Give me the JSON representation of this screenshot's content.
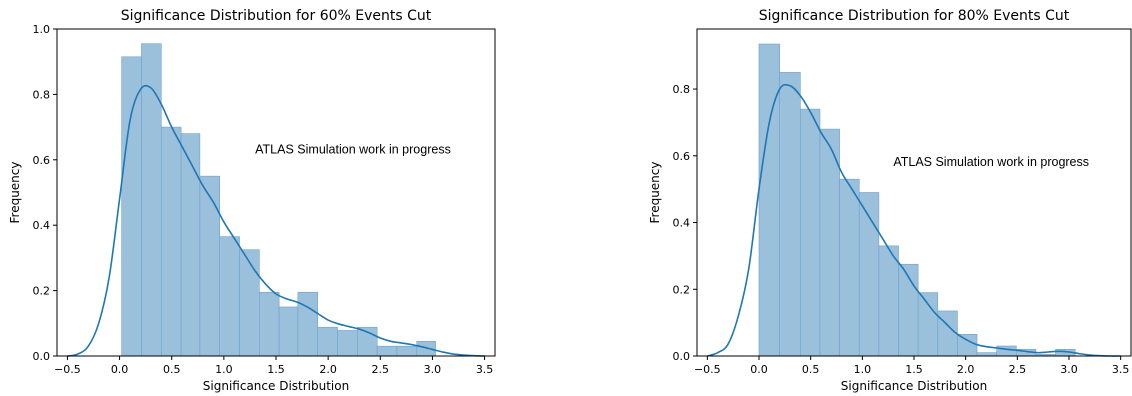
{
  "chart_data": [
    {
      "type": "bar",
      "title": "Significance Distribution for 60% Events Cut",
      "xlabel": "Significance Distribution",
      "ylabel": "Frequency",
      "xlim": [
        -0.6,
        3.6
      ],
      "ylim": [
        0,
        1.0
      ],
      "xticks": [
        -0.5,
        0.0,
        0.5,
        1.0,
        1.5,
        2.0,
        2.5,
        3.0,
        3.5
      ],
      "xtick_labels": [
        "−0.5",
        "0.0",
        "0.5",
        "1.0",
        "1.5",
        "2.0",
        "2.5",
        "3.0",
        "3.5"
      ],
      "yticks": [
        0.0,
        0.2,
        0.4,
        0.6,
        0.8,
        1.0
      ],
      "ytick_labels": [
        "0.0",
        "0.2",
        "0.4",
        "0.6",
        "0.8",
        "1.0"
      ],
      "annotation": "ATLAS Simulation work in progress",
      "annotation_pos_data": [
        1.3,
        0.62
      ],
      "histogram": {
        "bin_edges": [
          0.02,
          0.21,
          0.4,
          0.59,
          0.77,
          0.96,
          1.15,
          1.34,
          1.53,
          1.71,
          1.9,
          2.09,
          2.28,
          2.47,
          2.66,
          2.85,
          3.03
        ],
        "heights": [
          0.915,
          0.955,
          0.7,
          0.68,
          0.55,
          0.365,
          0.325,
          0.195,
          0.15,
          0.195,
          0.088,
          0.078,
          0.088,
          0.03,
          0.03,
          0.045
        ]
      },
      "kde": {
        "x": [
          -0.5,
          -0.4,
          -0.3,
          -0.2,
          -0.1,
          0.0,
          0.1,
          0.2,
          0.3,
          0.4,
          0.5,
          0.6,
          0.7,
          0.8,
          0.9,
          1.0,
          1.1,
          1.2,
          1.3,
          1.4,
          1.5,
          1.6,
          1.7,
          1.8,
          1.9,
          2.0,
          2.1,
          2.2,
          2.3,
          2.4,
          2.5,
          2.6,
          2.7,
          2.8,
          2.9,
          3.0,
          3.1,
          3.2,
          3.3,
          3.4,
          3.5
        ],
        "y": [
          0.0,
          0.006,
          0.03,
          0.1,
          0.24,
          0.48,
          0.72,
          0.815,
          0.82,
          0.77,
          0.7,
          0.64,
          0.58,
          0.52,
          0.47,
          0.41,
          0.36,
          0.31,
          0.26,
          0.22,
          0.19,
          0.175,
          0.165,
          0.15,
          0.13,
          0.11,
          0.098,
          0.09,
          0.082,
          0.07,
          0.055,
          0.045,
          0.04,
          0.035,
          0.028,
          0.02,
          0.012,
          0.006,
          0.003,
          0.001,
          0.0
        ]
      }
    },
    {
      "type": "bar",
      "title": "Significance Distribution for 80% Events Cut",
      "xlabel": "Significance Distribution",
      "ylabel": "Frequency",
      "xlim": [
        -0.6,
        3.6
      ],
      "ylim": [
        0,
        0.98
      ],
      "xticks": [
        -0.5,
        0.0,
        0.5,
        1.0,
        1.5,
        2.0,
        2.5,
        3.0,
        3.5
      ],
      "xtick_labels": [
        "−0.5",
        "0.0",
        "0.5",
        "1.0",
        "1.5",
        "2.0",
        "2.5",
        "3.0",
        "3.5"
      ],
      "yticks": [
        0.0,
        0.2,
        0.4,
        0.6,
        0.8
      ],
      "ytick_labels": [
        "0.0",
        "0.2",
        "0.4",
        "0.6",
        "0.8"
      ],
      "annotation": "ATLAS Simulation work in progress",
      "annotation_pos_data": [
        1.3,
        0.57
      ],
      "histogram": {
        "bin_edges": [
          0.0,
          0.2,
          0.4,
          0.59,
          0.78,
          0.97,
          1.16,
          1.35,
          1.54,
          1.73,
          1.92,
          2.11,
          2.3,
          2.49,
          2.68,
          2.87,
          3.06
        ],
        "heights": [
          0.935,
          0.85,
          0.74,
          0.68,
          0.53,
          0.49,
          0.33,
          0.275,
          0.19,
          0.135,
          0.065,
          0.01,
          0.03,
          0.02,
          0.005,
          0.02
        ]
      },
      "kde": {
        "x": [
          -0.5,
          -0.4,
          -0.3,
          -0.2,
          -0.1,
          0.0,
          0.1,
          0.2,
          0.3,
          0.4,
          0.5,
          0.6,
          0.7,
          0.8,
          0.9,
          1.0,
          1.1,
          1.2,
          1.3,
          1.4,
          1.5,
          1.6,
          1.7,
          1.8,
          1.9,
          2.0,
          2.1,
          2.2,
          2.3,
          2.4,
          2.5,
          2.6,
          2.7,
          2.8,
          2.9,
          3.0,
          3.1,
          3.2,
          3.3,
          3.4,
          3.5
        ],
        "y": [
          0.0,
          0.01,
          0.035,
          0.12,
          0.26,
          0.5,
          0.7,
          0.8,
          0.81,
          0.78,
          0.73,
          0.67,
          0.62,
          0.55,
          0.5,
          0.45,
          0.4,
          0.35,
          0.3,
          0.26,
          0.21,
          0.17,
          0.13,
          0.1,
          0.07,
          0.05,
          0.035,
          0.028,
          0.024,
          0.02,
          0.017,
          0.013,
          0.01,
          0.012,
          0.014,
          0.012,
          0.007,
          0.003,
          0.001,
          0.0,
          0.0
        ]
      }
    }
  ],
  "colors": {
    "bar_fill": "#9ac0dc",
    "bar_edge": "#6fa1cc",
    "kde_line": "#1f77b4"
  }
}
